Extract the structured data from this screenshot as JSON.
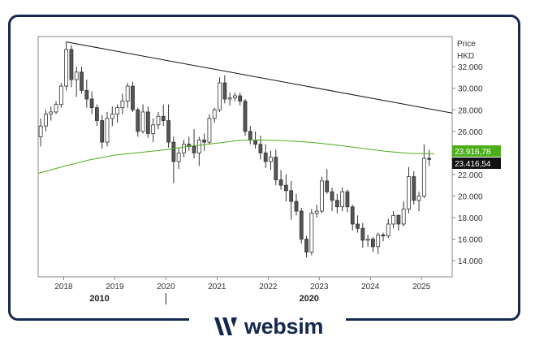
{
  "chart_data": {
    "type": "candlestick",
    "ylabel": "Price",
    "unit": "HKD",
    "y_ticks": [
      "14.000",
      "16.000",
      "18.000",
      "20.000",
      "22.000",
      "24.000",
      "26.000",
      "28.000",
      "30.000",
      "32.000"
    ],
    "ylim": [
      12.5,
      34.8
    ],
    "x_ticks": [
      "2018",
      "2019",
      "2020",
      "2021",
      "2022",
      "2023",
      "2024",
      "2025"
    ],
    "xlim": [
      2017.5,
      2025.6
    ],
    "decade_labels": [
      {
        "text": "2010",
        "x": 2018.7
      },
      {
        "text": "2020",
        "x": 2020.0
      }
    ],
    "last_price": "23.416,54",
    "ma_label": "23.916,78",
    "colors": {
      "up": "#ffffff",
      "down": "#555555",
      "ma": "#4caf1a",
      "trend": "#111111",
      "brand": "#16284f"
    },
    "candles": [
      [
        2017.55,
        25.5,
        27.2,
        24.6,
        26.5
      ],
      [
        2017.65,
        26.5,
        28,
        26,
        27.6
      ],
      [
        2017.75,
        27.6,
        28.3,
        27,
        27.8
      ],
      [
        2017.85,
        27.8,
        28.8,
        27.6,
        28.5
      ],
      [
        2017.95,
        28.5,
        30.5,
        28.2,
        30.2
      ],
      [
        2018.05,
        30.2,
        34.3,
        29.8,
        33.6
      ],
      [
        2018.15,
        33.6,
        34.0,
        30.1,
        30.8
      ],
      [
        2018.25,
        30.8,
        32,
        29.2,
        31.5
      ],
      [
        2018.35,
        31.5,
        32,
        29.5,
        29.8
      ],
      [
        2018.45,
        29.8,
        30.8,
        28.2,
        29
      ],
      [
        2018.55,
        29,
        29.7,
        27.6,
        28.2
      ],
      [
        2018.65,
        28.2,
        28.5,
        26.5,
        27
      ],
      [
        2018.75,
        27,
        27.5,
        24.4,
        25
      ],
      [
        2018.85,
        25,
        27.8,
        24.6,
        27.2
      ],
      [
        2018.95,
        27.2,
        28.3,
        26.5,
        27.6
      ],
      [
        2019.05,
        27.6,
        28.5,
        26.8,
        28.2
      ],
      [
        2019.15,
        28.2,
        29.5,
        27.6,
        28.8
      ],
      [
        2019.25,
        28.8,
        30.5,
        28.2,
        30.2
      ],
      [
        2019.35,
        30.2,
        30.6,
        27.8,
        28
      ],
      [
        2019.45,
        28,
        28.2,
        25.5,
        26
      ],
      [
        2019.55,
        26,
        28.5,
        25.8,
        27.8
      ],
      [
        2019.65,
        27.8,
        28.3,
        25.4,
        25.8
      ],
      [
        2019.75,
        25.8,
        27.2,
        25,
        26.6
      ],
      [
        2019.85,
        26.6,
        27.8,
        26.2,
        27.4
      ],
      [
        2019.95,
        27.4,
        28.5,
        26.5,
        27
      ],
      [
        2020.05,
        27,
        28.5,
        24.5,
        25
      ],
      [
        2020.15,
        25,
        25.5,
        21.2,
        23.2
      ],
      [
        2020.25,
        23.2,
        24.5,
        22.5,
        24
      ],
      [
        2020.35,
        24,
        25.2,
        23.6,
        24.8
      ],
      [
        2020.45,
        24.8,
        25.5,
        24.2,
        24.6
      ],
      [
        2020.55,
        24.6,
        26.2,
        23.5,
        24
      ],
      [
        2020.65,
        24,
        25.5,
        22.8,
        25.2
      ],
      [
        2020.75,
        25.2,
        25.8,
        24.2,
        25
      ],
      [
        2020.85,
        25,
        27.6,
        24.8,
        27.2
      ],
      [
        2020.95,
        27.2,
        28.2,
        26.8,
        28
      ],
      [
        2021.05,
        28,
        31.0,
        27.8,
        30.5
      ],
      [
        2021.15,
        30.5,
        31.2,
        28.6,
        29
      ],
      [
        2021.25,
        29,
        29.6,
        28.4,
        29.1
      ],
      [
        2021.35,
        29.1,
        29.6,
        28.8,
        29.3
      ],
      [
        2021.45,
        29.3,
        29.6,
        28.4,
        28.8
      ],
      [
        2021.55,
        28.8,
        29,
        25.6,
        26
      ],
      [
        2021.65,
        26,
        26.5,
        24.8,
        25.2
      ],
      [
        2021.75,
        25.2,
        26,
        24.4,
        24.8
      ],
      [
        2021.85,
        24.8,
        25.6,
        23.4,
        24
      ],
      [
        2021.95,
        24,
        24.8,
        22.6,
        23.2
      ],
      [
        2022.05,
        23.2,
        24.2,
        22.4,
        23.6
      ],
      [
        2022.15,
        23.6,
        24.3,
        21,
        21.5
      ],
      [
        2022.25,
        21.5,
        22.4,
        20.6,
        21
      ],
      [
        2022.35,
        21,
        22,
        19.5,
        20.5
      ],
      [
        2022.45,
        20.5,
        21.4,
        17.8,
        19.5
      ],
      [
        2022.55,
        19.5,
        20.2,
        18.2,
        18.6
      ],
      [
        2022.65,
        18.6,
        18.9,
        15.6,
        16
      ],
      [
        2022.75,
        16,
        16.3,
        14.3,
        14.8
      ],
      [
        2022.85,
        14.8,
        18.8,
        14.5,
        18.4
      ],
      [
        2022.95,
        18.4,
        19.2,
        18,
        18.6
      ],
      [
        2023.05,
        18.6,
        21.8,
        18.4,
        21.4
      ],
      [
        2023.15,
        21.4,
        22.5,
        20.2,
        20.4
      ],
      [
        2023.25,
        20.4,
        20.8,
        18.6,
        19.6
      ],
      [
        2023.35,
        19.6,
        20.2,
        18.4,
        19
      ],
      [
        2023.45,
        19,
        20.8,
        18.6,
        20.4
      ],
      [
        2023.55,
        20.4,
        20.6,
        18.5,
        19
      ],
      [
        2023.65,
        19,
        19.2,
        16.8,
        17.4
      ],
      [
        2023.75,
        17.4,
        18.2,
        16.6,
        17
      ],
      [
        2023.85,
        17,
        17.5,
        15.2,
        15.9
      ],
      [
        2023.95,
        15.9,
        16.4,
        15.3,
        16
      ],
      [
        2024.05,
        16,
        16.2,
        14.8,
        15.3
      ],
      [
        2024.15,
        15.3,
        16.6,
        14.6,
        16.4
      ],
      [
        2024.25,
        16.4,
        16.6,
        15.8,
        16.3
      ],
      [
        2024.35,
        16.3,
        17.9,
        16.1,
        17.4
      ],
      [
        2024.45,
        17.4,
        18.6,
        17,
        18.2
      ],
      [
        2024.55,
        18.2,
        18.3,
        16.8,
        17.4
      ],
      [
        2024.65,
        17.4,
        19.5,
        17.2,
        18.8
      ],
      [
        2024.75,
        18.8,
        22.7,
        18.4,
        21.8
      ],
      [
        2024.85,
        21.8,
        22.3,
        19.2,
        19.6
      ],
      [
        2024.95,
        19.6,
        20.4,
        18.6,
        20
      ],
      [
        2025.05,
        20,
        24.8,
        19.8,
        23.5
      ],
      [
        2025.15,
        23.5,
        24.3,
        22.8,
        23.4
      ]
    ],
    "moving_average": [
      [
        2017.5,
        22.1
      ],
      [
        2018.0,
        22.75
      ],
      [
        2018.5,
        23.35
      ],
      [
        2019.0,
        23.8
      ],
      [
        2019.5,
        24.05
      ],
      [
        2020.0,
        24.3
      ],
      [
        2020.5,
        24.65
      ],
      [
        2021.0,
        24.9
      ],
      [
        2021.4,
        25.15
      ],
      [
        2021.8,
        25.2
      ],
      [
        2022.3,
        25.15
      ],
      [
        2022.8,
        25
      ],
      [
        2023.3,
        24.75
      ],
      [
        2023.8,
        24.45
      ],
      [
        2024.3,
        24.15
      ],
      [
        2024.8,
        23.95
      ],
      [
        2025.25,
        23.92
      ]
    ],
    "trendline": [
      [
        2018.05,
        34.3
      ],
      [
        2025.6,
        27.7
      ]
    ]
  },
  "brand": {
    "name": "websim"
  }
}
